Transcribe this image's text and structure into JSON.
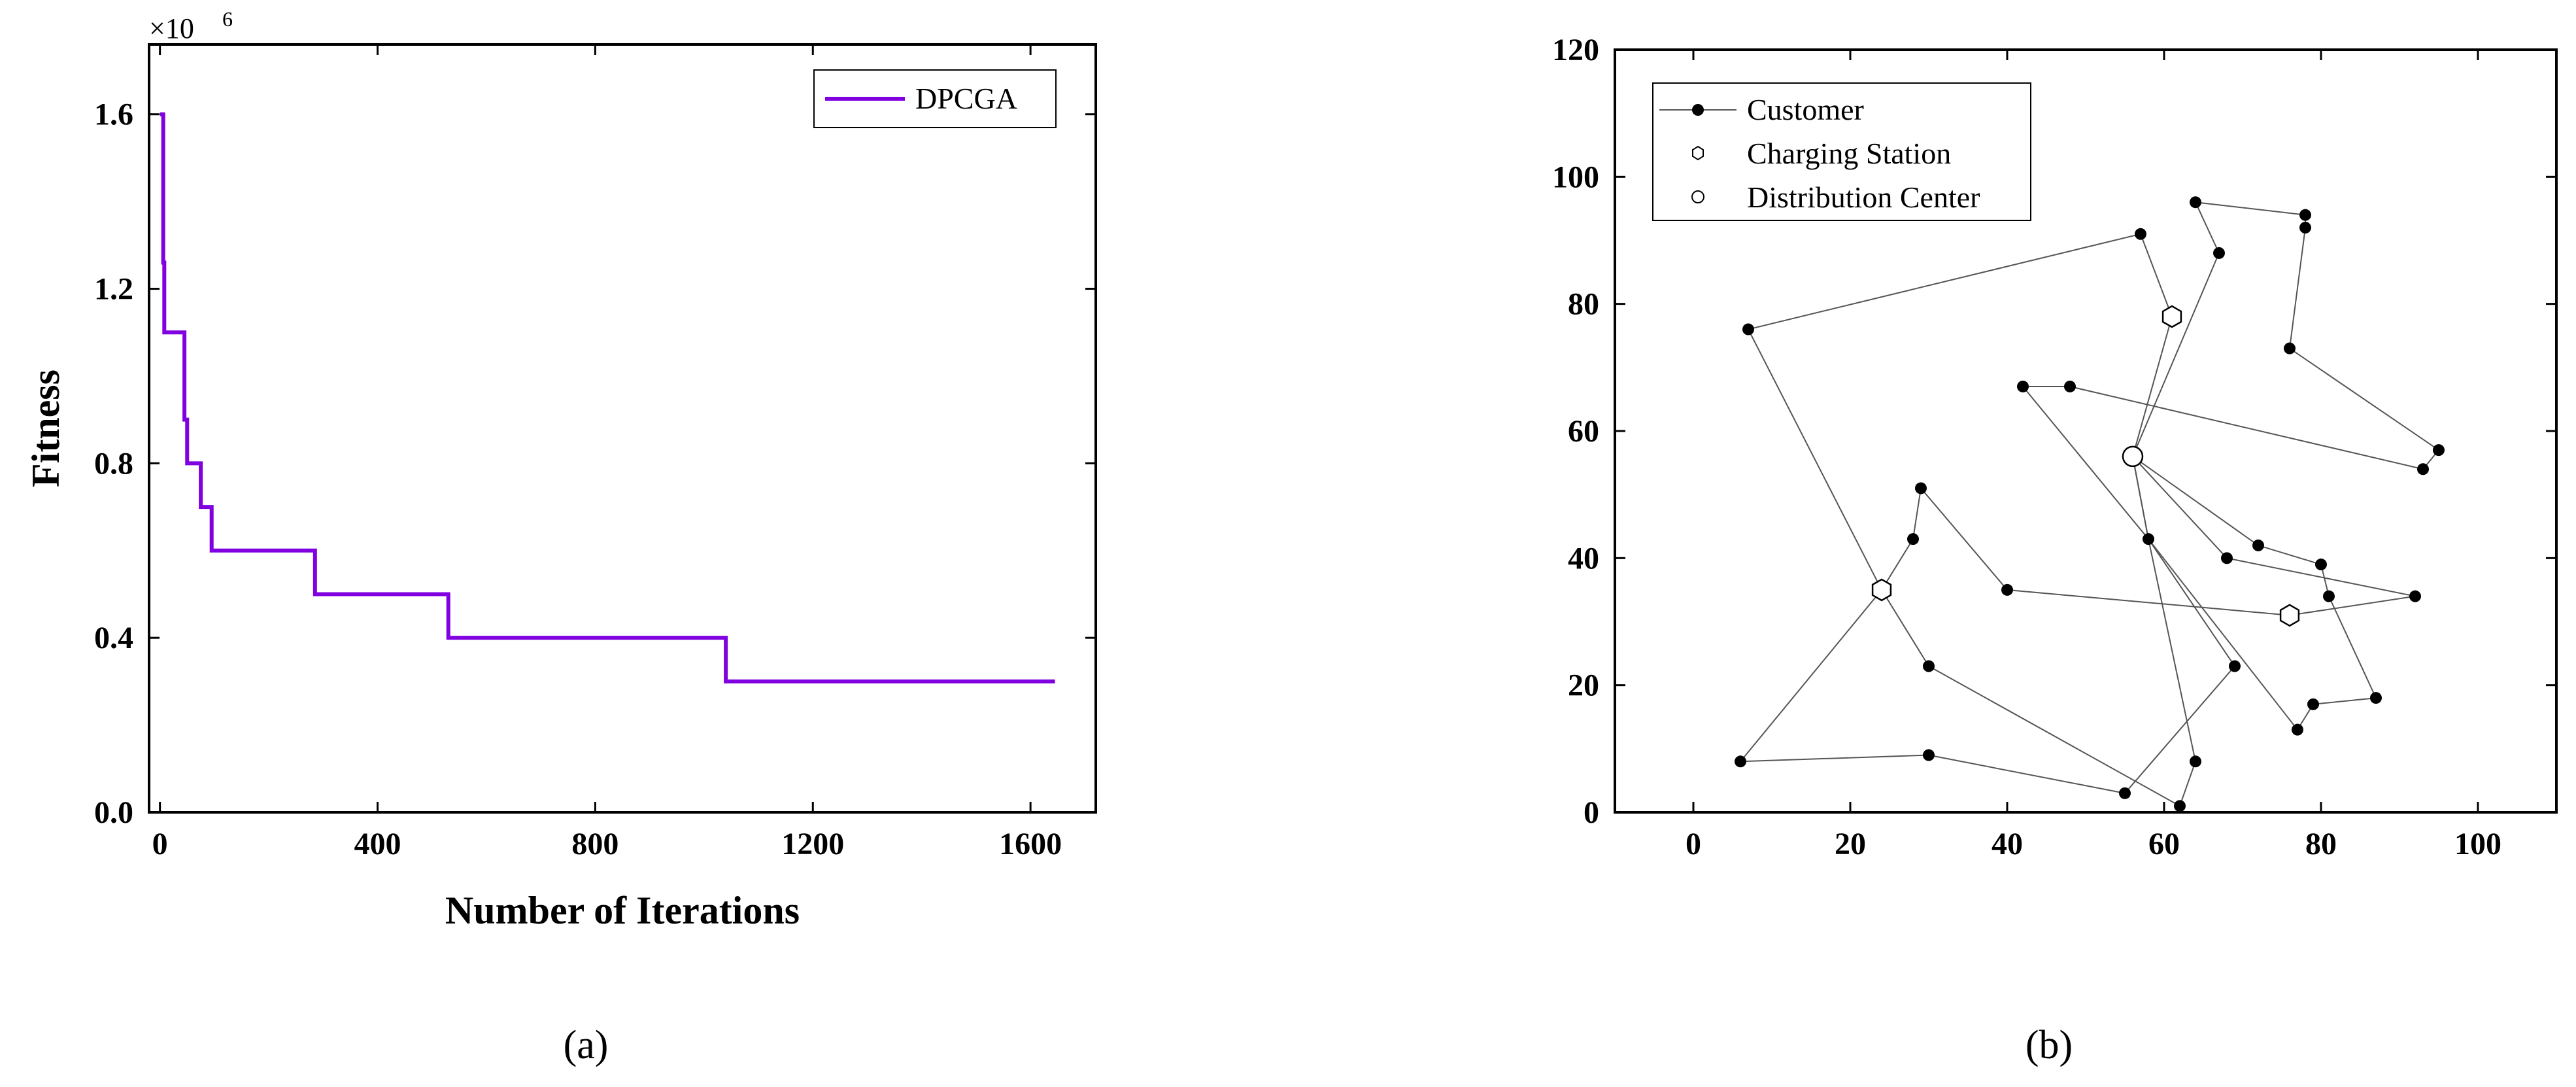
{
  "chart_data": [
    {
      "type": "line",
      "panel_label": "(a)",
      "xlabel": "Number of Iterations",
      "ylabel": "Fitness",
      "y_multiplier_label": "×10",
      "y_multiplier_exponent": "6",
      "xlim": [
        -20,
        1720
      ],
      "ylim": [
        0,
        1.76
      ],
      "xticks": [
        0,
        400,
        800,
        1200,
        1600
      ],
      "yticks": [
        0.0,
        0.4,
        0.8,
        1.2,
        1.6
      ],
      "ytick_labels": [
        "0.0",
        "0.4",
        "0.8",
        "1.2",
        "1.6"
      ],
      "grid": false,
      "legend": "top-right",
      "line_color": "#8000e0",
      "series": [
        {
          "name": "DPCGA",
          "step": true,
          "x": [
            0,
            6,
            8,
            40,
            45,
            50,
            75,
            95,
            150,
            285,
            530,
            1040,
            1645
          ],
          "y": [
            1.6,
            1.26,
            1.1,
            1.1,
            0.9,
            0.8,
            0.7,
            0.6,
            0.6,
            0.5,
            0.4,
            0.3,
            0.3
          ]
        }
      ]
    },
    {
      "type": "scatter",
      "panel_label": "(b)",
      "xlabel": "",
      "ylabel": "",
      "xlim": [
        -10,
        110
      ],
      "ylim": [
        0,
        120
      ],
      "xticks": [
        0,
        20,
        40,
        60,
        80,
        100
      ],
      "yticks": [
        0,
        20,
        40,
        60,
        80,
        100,
        120
      ],
      "grid": false,
      "legend": "top-left",
      "legend_entries": [
        "Customer",
        "Charging Station",
        "Distribution Center"
      ],
      "distribution_center": [
        56,
        56
      ],
      "charging_stations": [
        [
          61,
          78
        ],
        [
          24,
          35
        ],
        [
          76,
          31
        ]
      ],
      "routes": [
        [
          [
            56,
            56
          ],
          [
            67,
            88
          ],
          [
            64,
            96
          ],
          [
            78,
            94
          ],
          [
            78,
            92
          ],
          [
            76,
            73
          ],
          [
            95,
            57
          ],
          [
            93,
            54
          ],
          [
            48,
            67
          ],
          [
            42,
            67
          ],
          [
            58,
            43
          ],
          [
            77,
            13
          ],
          [
            79,
            17
          ],
          [
            87,
            18
          ],
          [
            81,
            34
          ],
          [
            80,
            39
          ],
          [
            72,
            42
          ],
          [
            56,
            56
          ]
        ],
        [
          [
            56,
            56
          ],
          [
            61,
            78
          ],
          [
            57,
            91
          ],
          [
            7,
            76
          ],
          [
            24,
            35
          ],
          [
            6,
            8
          ],
          [
            30,
            9
          ],
          [
            55,
            3
          ],
          [
            69,
            23
          ],
          [
            58,
            43
          ],
          [
            56,
            56
          ]
        ],
        [
          [
            56,
            56
          ],
          [
            68,
            40
          ],
          [
            92,
            34
          ],
          [
            76,
            31
          ],
          [
            40,
            35
          ],
          [
            29,
            51
          ],
          [
            28,
            43
          ],
          [
            24,
            35
          ],
          [
            30,
            23
          ],
          [
            62,
            1
          ],
          [
            64,
            8
          ],
          [
            58,
            43
          ],
          [
            56,
            56
          ]
        ]
      ]
    }
  ]
}
